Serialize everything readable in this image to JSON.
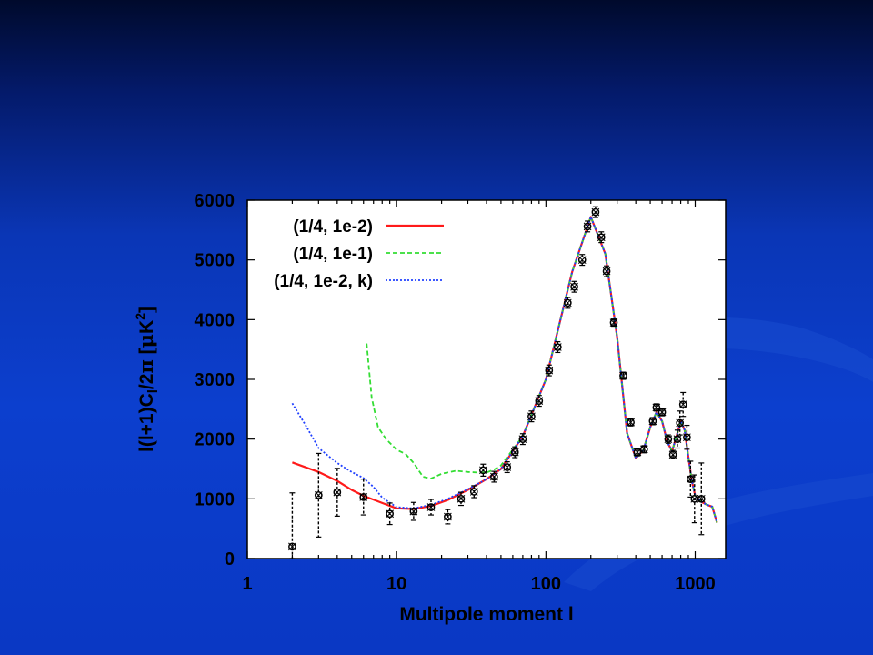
{
  "chart_data": {
    "type": "line",
    "xscale": "log",
    "xlim": [
      1,
      1600
    ],
    "ylim": [
      0,
      6000
    ],
    "xlabel": "Multipole moment l",
    "ylabel": "l(l+1)C",
    "ylabel_sub": "l",
    "ylabel_mid": "/2",
    "ylabel_pi": "π",
    "ylabel_open": " [",
    "ylabel_mu": "μ",
    "ylabel_unit": "K",
    "ylabel_sup": "2",
    "ylabel_close": "]",
    "xticks": [
      {
        "value": 1,
        "label": "1"
      },
      {
        "value": 10,
        "label": "10"
      },
      {
        "value": 100,
        "label": "100"
      },
      {
        "value": 1000,
        "label": "1000"
      }
    ],
    "yticks": [
      {
        "value": 0,
        "label": "0"
      },
      {
        "value": 1000,
        "label": "1000"
      },
      {
        "value": 2000,
        "label": "2000"
      },
      {
        "value": 3000,
        "label": "3000"
      },
      {
        "value": 4000,
        "label": "4000"
      },
      {
        "value": 5000,
        "label": "5000"
      },
      {
        "value": 6000,
        "label": "6000"
      }
    ],
    "legend_position": "top-left",
    "series": [
      {
        "name": "(1/4, 1e-2)",
        "color": "#ff1a1a",
        "style": "solid",
        "x": [
          2,
          3,
          4,
          5,
          6,
          8,
          10,
          13,
          17,
          22,
          30,
          40,
          50,
          70,
          100,
          150,
          200,
          250,
          300,
          350,
          400,
          450,
          500,
          550,
          600,
          650,
          700,
          750,
          800,
          850,
          900,
          950,
          1000,
          1100,
          1200,
          1300,
          1400
        ],
        "y": [
          1610,
          1450,
          1300,
          1150,
          1050,
          930,
          840,
          830,
          880,
          980,
          1150,
          1330,
          1500,
          2050,
          3000,
          4800,
          5720,
          5100,
          3700,
          2100,
          1680,
          1820,
          2200,
          2450,
          2300,
          1950,
          1800,
          2050,
          2300,
          2150,
          1700,
          1300,
          1050,
          950,
          900,
          870,
          600
        ]
      },
      {
        "name": "(1/4, 1e-1)",
        "color": "#33dd33",
        "style": "dash",
        "x": [
          6.3,
          6.8,
          7.5,
          8.5,
          10,
          11.5,
          13,
          15,
          17,
          20,
          25,
          30,
          35,
          40,
          45,
          50,
          70,
          100,
          150,
          200,
          250,
          300,
          350,
          400,
          450,
          500,
          550,
          600,
          650,
          700,
          750,
          800,
          850,
          900,
          950,
          1000,
          1100,
          1200,
          1300,
          1400
        ],
        "y": [
          3600,
          2700,
          2200,
          2000,
          1820,
          1750,
          1600,
          1370,
          1340,
          1420,
          1470,
          1450,
          1440,
          1440,
          1490,
          1560,
          2050,
          3000,
          4800,
          5720,
          5100,
          3700,
          2100,
          1680,
          1820,
          2200,
          2450,
          2300,
          1950,
          1800,
          2050,
          2300,
          2150,
          1700,
          1300,
          1050,
          950,
          900,
          870,
          600
        ]
      },
      {
        "name": "(1/4, 1e-2, k)",
        "color": "#2040ff",
        "style": "dot",
        "x": [
          2,
          2.5,
          3,
          4,
          5,
          6,
          7,
          8,
          10,
          13,
          17,
          22,
          30,
          40,
          50,
          70,
          100,
          150,
          200,
          250,
          300,
          350,
          400,
          450,
          500,
          550,
          600,
          650,
          700,
          750,
          800,
          850,
          900,
          950,
          1000,
          1100,
          1200,
          1300,
          1400
        ],
        "y": [
          2600,
          2200,
          1850,
          1600,
          1450,
          1350,
          1200,
          1020,
          860,
          840,
          900,
          1000,
          1160,
          1330,
          1500,
          2050,
          3000,
          4800,
          5720,
          5100,
          3700,
          2100,
          1680,
          1820,
          2200,
          2450,
          2300,
          1950,
          1800,
          2050,
          2300,
          2150,
          1700,
          1300,
          1050,
          950,
          900,
          870,
          600
        ]
      }
    ],
    "observations": {
      "x": [
        2,
        3,
        4,
        6,
        9,
        13,
        17,
        22,
        27,
        33,
        38,
        45,
        55,
        62,
        70,
        80,
        90,
        105,
        120,
        140,
        155,
        175,
        190,
        215,
        235,
        255,
        285,
        330,
        370,
        410,
        455,
        520,
        550,
        600,
        660,
        710,
        760,
        790,
        830,
        880,
        930,
        990,
        1100
      ],
      "y": [
        200,
        1060,
        1110,
        1030,
        750,
        790,
        860,
        700,
        1000,
        1120,
        1480,
        1370,
        1530,
        1780,
        2000,
        2380,
        2640,
        3150,
        3540,
        4280,
        4550,
        5000,
        5560,
        5800,
        5380,
        4810,
        3950,
        3060,
        2280,
        1780,
        1830,
        2300,
        2530,
        2450,
        2000,
        1740,
        2000,
        2270,
        2580,
        2030,
        1330,
        1000,
        1000
      ],
      "err": [
        900,
        700,
        400,
        300,
        180,
        150,
        130,
        120,
        110,
        100,
        100,
        90,
        90,
        90,
        90,
        90,
        90,
        90,
        90,
        90,
        90,
        90,
        90,
        90,
        90,
        90,
        60,
        60,
        60,
        60,
        60,
        60,
        60,
        60,
        70,
        70,
        150,
        200,
        200,
        200,
        300,
        400,
        600
      ]
    }
  }
}
